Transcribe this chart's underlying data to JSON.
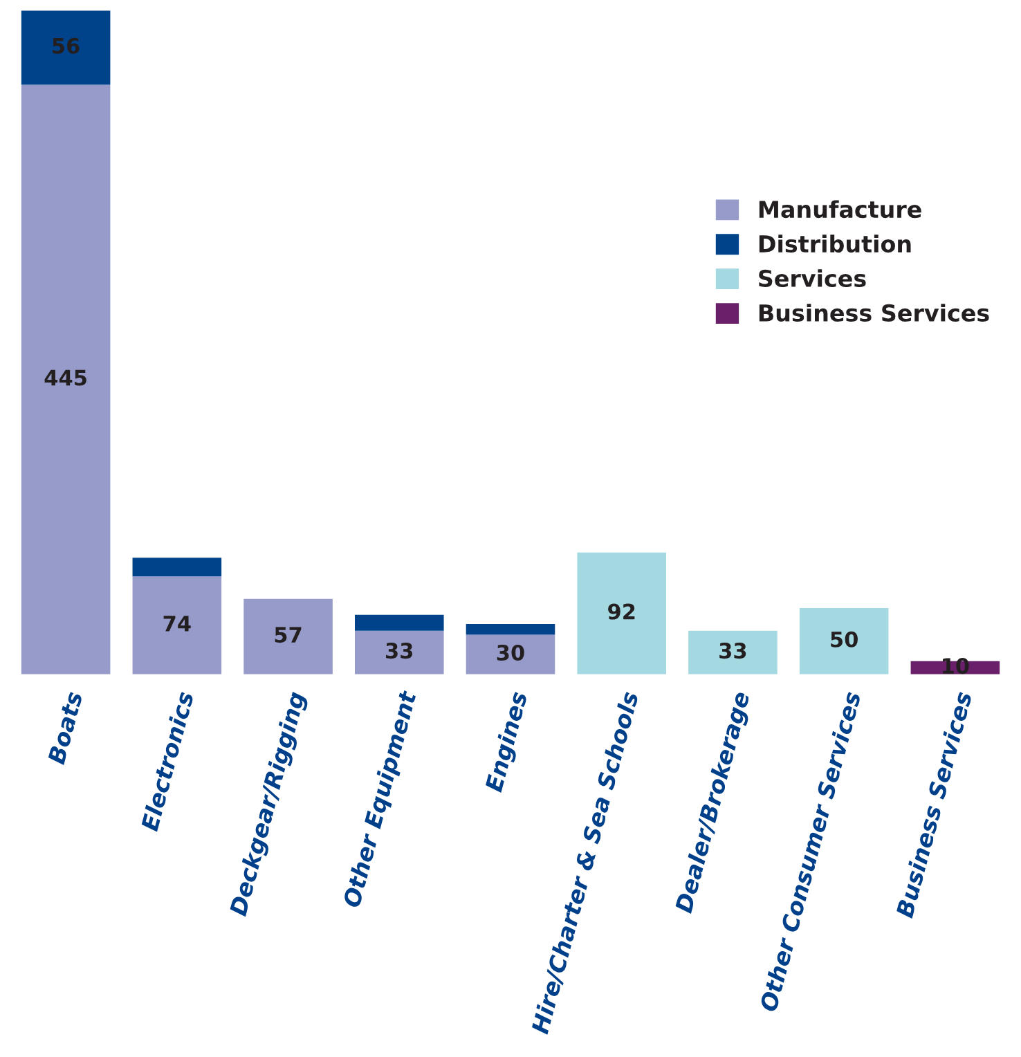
{
  "chart_data": {
    "type": "bar",
    "stacked": true,
    "categories": [
      "Boats",
      "Electronics",
      "Deckgear/Rigging",
      "Other Equipment",
      "Engines",
      "Hire/Charter & Sea Schools",
      "Dealer/Brokerage",
      "Other Consumer Services",
      "Business Services"
    ],
    "series": [
      {
        "name": "Manufacture",
        "color": "#979bc9",
        "values": [
          445,
          74,
          57,
          33,
          30,
          null,
          null,
          null,
          null
        ],
        "value_labels": [
          "445",
          "74",
          "57",
          "33",
          "30",
          null,
          null,
          null,
          null
        ]
      },
      {
        "name": "Distribution",
        "color": "#00438a",
        "values": [
          56,
          14,
          null,
          12,
          8,
          null,
          null,
          null,
          null
        ],
        "value_labels": [
          "56",
          null,
          null,
          null,
          null,
          null,
          null,
          null,
          null
        ]
      },
      {
        "name": "Services",
        "color": "#a5d9e2",
        "values": [
          null,
          null,
          null,
          null,
          null,
          92,
          33,
          50,
          null
        ],
        "value_labels": [
          null,
          null,
          null,
          null,
          null,
          "92",
          "33",
          "50",
          null
        ]
      },
      {
        "name": "Business Services",
        "color": "#6a1f6a",
        "values": [
          null,
          null,
          null,
          null,
          null,
          null,
          null,
          null,
          10
        ],
        "value_labels": [
          null,
          null,
          null,
          null,
          null,
          null,
          null,
          null,
          "10"
        ]
      }
    ],
    "legend": "right",
    "grid": false
  }
}
